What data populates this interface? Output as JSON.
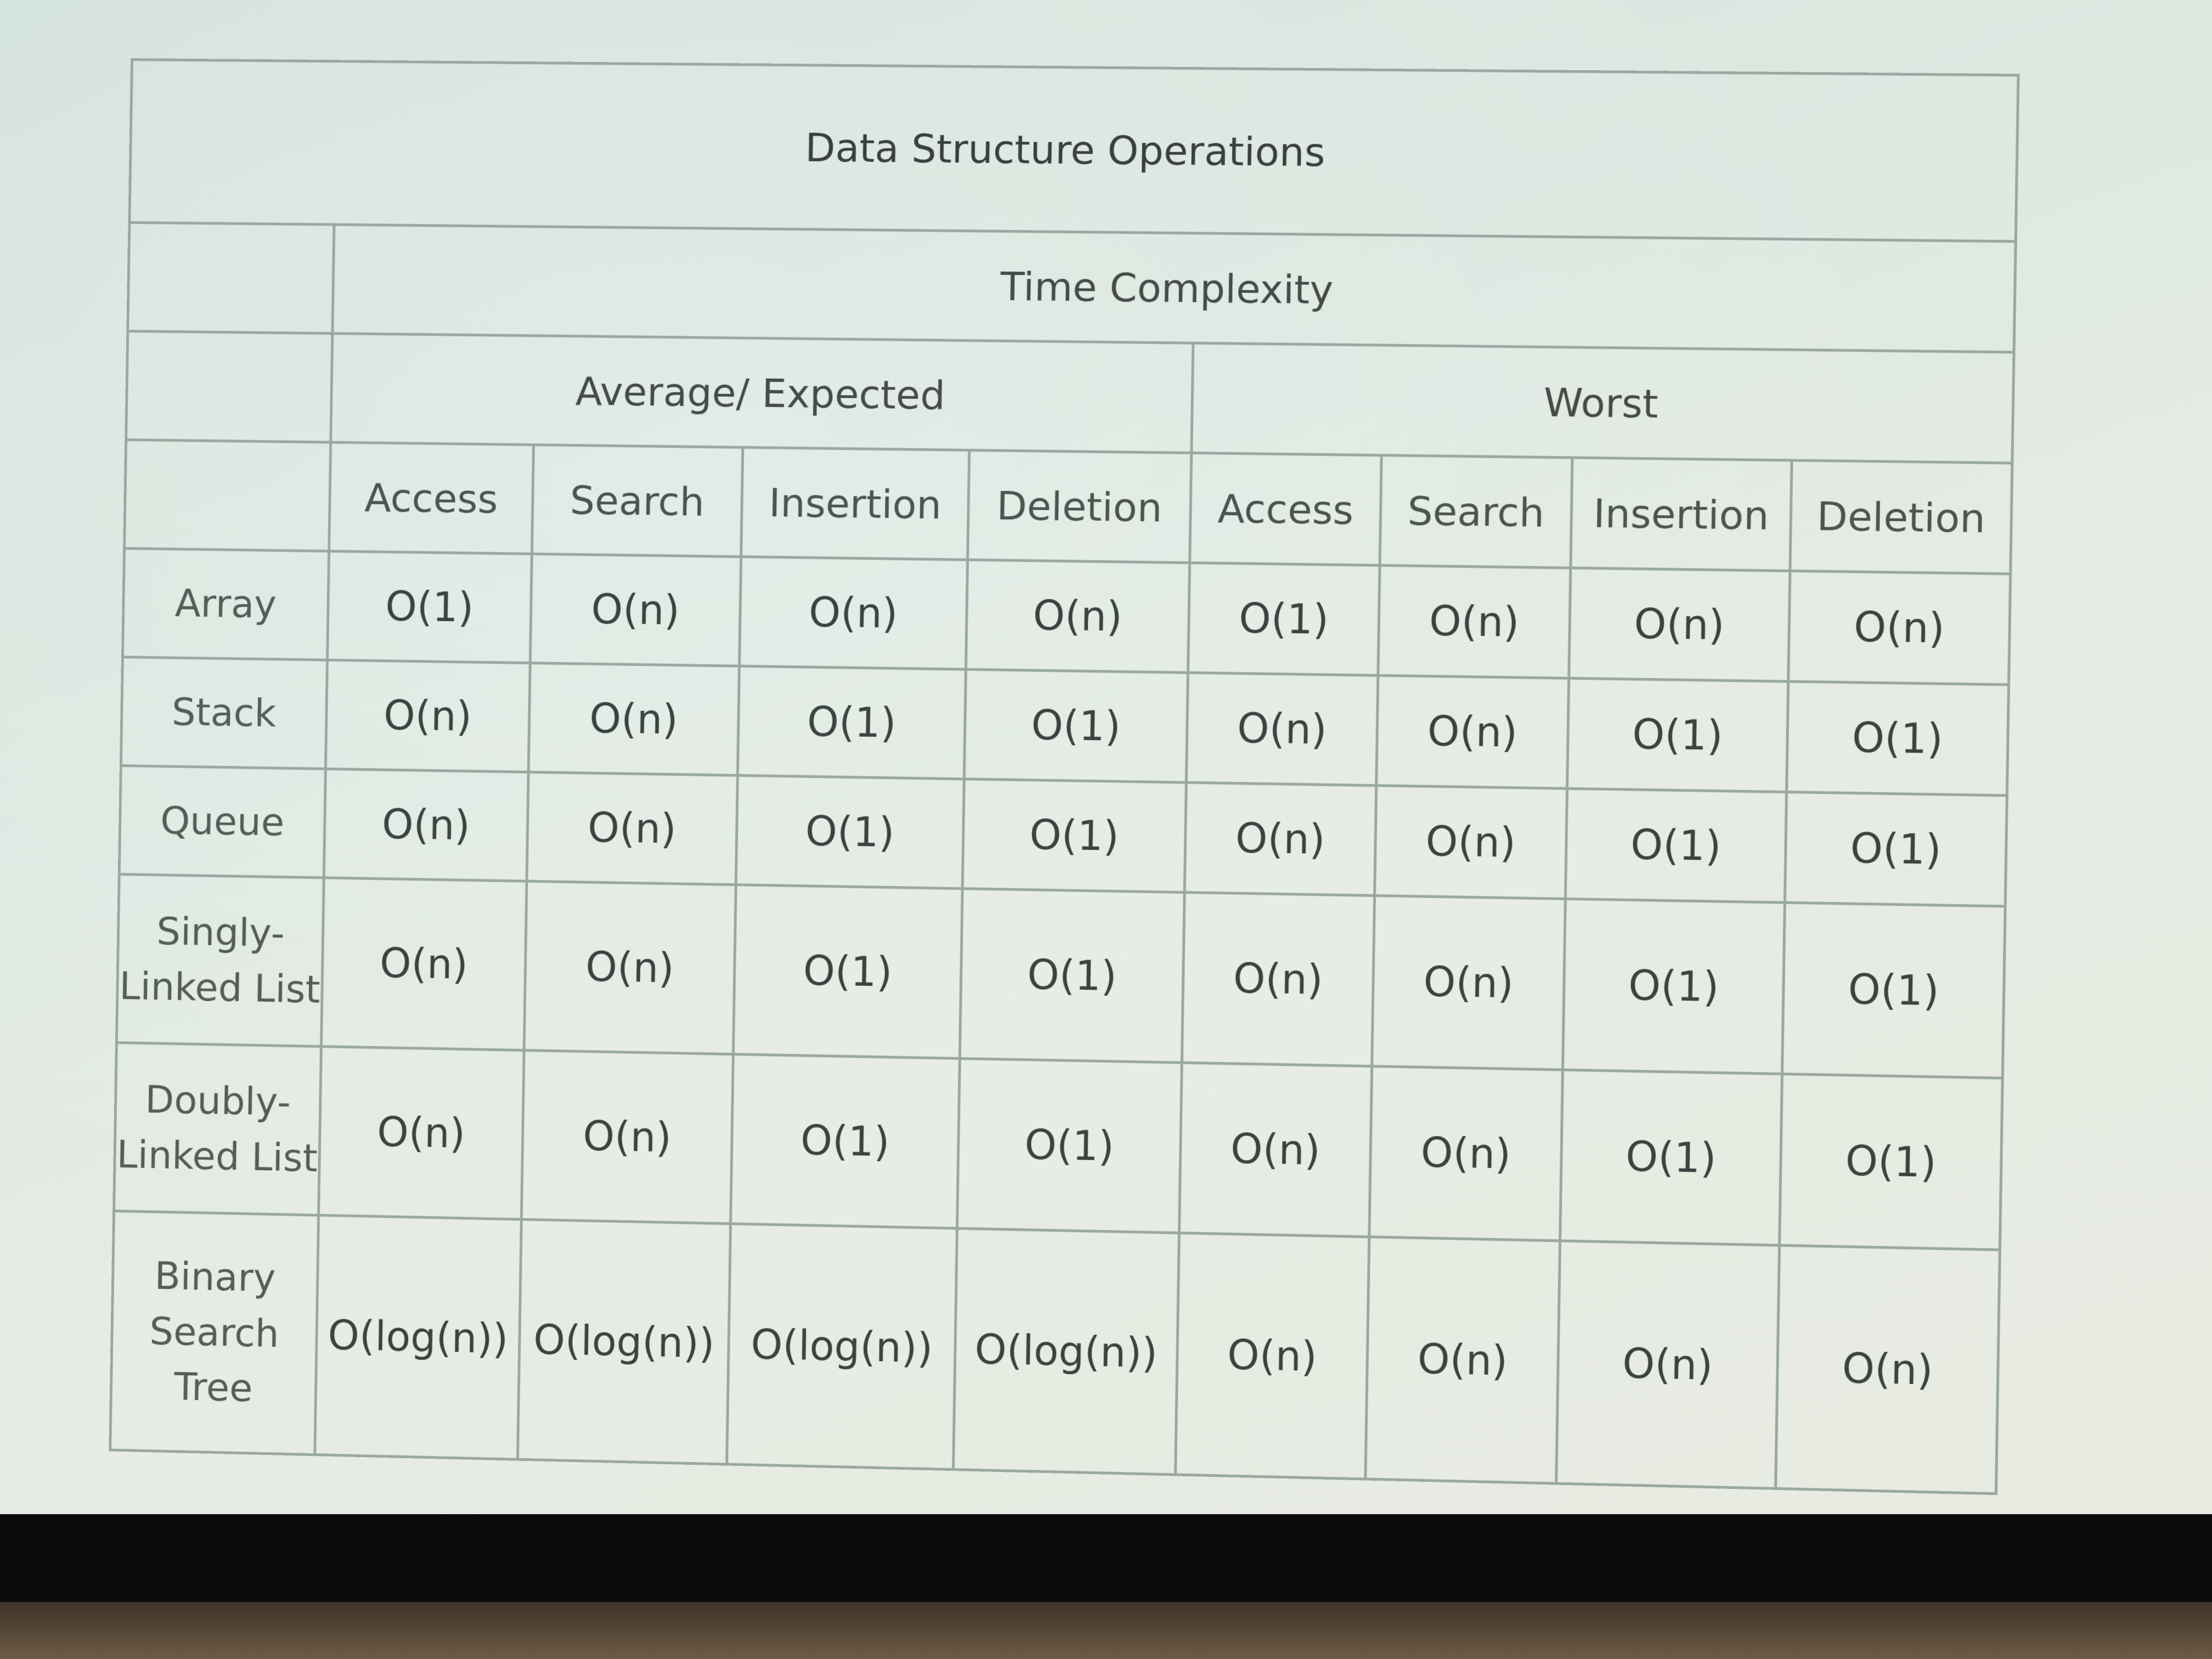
{
  "table": {
    "title": "Data Structure Operations",
    "group_header": "Time Complexity",
    "subgroups": [
      {
        "label": "Average/ Expected"
      },
      {
        "label": "Worst"
      }
    ],
    "operations": [
      "Access",
      "Search",
      "Insertion",
      "Deletion",
      "Access",
      "Search",
      "Insertion",
      "Deletion"
    ],
    "rows": [
      {
        "label": "Array",
        "values": [
          "O(1)",
          "O(n)",
          "O(n)",
          "O(n)",
          "O(1)",
          "O(n)",
          "O(n)",
          "O(n)"
        ]
      },
      {
        "label": "Stack",
        "values": [
          "O(n)",
          "O(n)",
          "O(1)",
          "O(1)",
          "O(n)",
          "O(n)",
          "O(1)",
          "O(1)"
        ]
      },
      {
        "label": "Queue",
        "values": [
          "O(n)",
          "O(n)",
          "O(1)",
          "O(1)",
          "O(n)",
          "O(n)",
          "O(1)",
          "O(1)"
        ]
      },
      {
        "label": "Singly-\nLinked List",
        "values": [
          "O(n)",
          "O(n)",
          "O(1)",
          "O(1)",
          "O(n)",
          "O(n)",
          "O(1)",
          "O(1)"
        ]
      },
      {
        "label": "Doubly-\nLinked List",
        "values": [
          "O(n)",
          "O(n)",
          "O(1)",
          "O(1)",
          "O(n)",
          "O(n)",
          "O(1)",
          "O(1)"
        ]
      },
      {
        "label": "Binary\nSearch\nTree",
        "values": [
          "O(log(n))",
          "O(log(n))",
          "O(log(n))",
          "O(log(n))",
          "O(n)",
          "O(n)",
          "O(n)",
          "O(n)"
        ]
      }
    ]
  }
}
